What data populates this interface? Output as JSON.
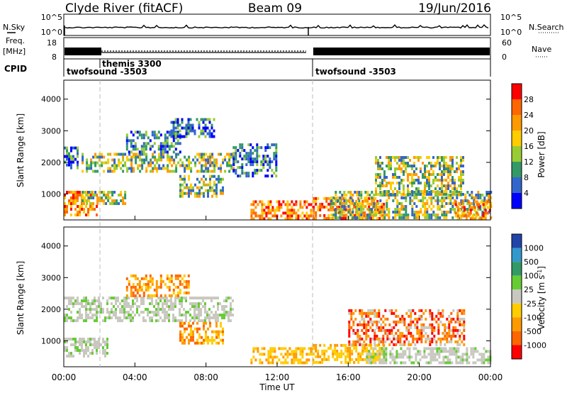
{
  "header": {
    "station": "Clyde River (fitACF)",
    "beam": "Beam 09",
    "date": "19/Jun/2016"
  },
  "noise_panel": {
    "left_label": "N.Sky",
    "left_ticks": [
      "10^5",
      "10^0"
    ],
    "right_label": "N.Search",
    "right_ticks": [
      "10^5",
      "10^0"
    ]
  },
  "freq_panel": {
    "left_label_top": "Freq.",
    "left_label_bottom": "[MHz]",
    "left_ticks": [
      "18",
      "8"
    ],
    "right_label": "Nave",
    "right_ticks": [
      "60",
      "0"
    ]
  },
  "cpid_panel": {
    "label": "CPID",
    "modes": [
      {
        "name": "twofsound -3503",
        "start_hour": 0,
        "end_hour": 2
      },
      {
        "name": "themis 3300",
        "start_hour": 2,
        "end_hour": 14
      },
      {
        "name": "twofsound -3503",
        "start_hour": 14,
        "end_hour": 24
      }
    ]
  },
  "time_axis": {
    "label": "Time UT",
    "ticks": [
      "00:00",
      "04:00",
      "08:00",
      "12:00",
      "16:00",
      "20:00",
      "00:00"
    ]
  },
  "chart_data": [
    {
      "type": "heatmap",
      "quantity": "Power",
      "ylabel": "Slant Range [km]",
      "yticks": [
        "1000",
        "2000",
        "3000",
        "4000"
      ],
      "ylim": [
        180,
        4600
      ],
      "xlim_hours": [
        0,
        24
      ],
      "colorbar": {
        "label": "Power [dB]",
        "ticks": [
          "28",
          "24",
          "20",
          "16",
          "12",
          "8",
          "4"
        ],
        "colors": [
          "#ff0000",
          "#ff6600",
          "#ff9900",
          "#ffcc00",
          "#99cc33",
          "#339966",
          "#3366cc",
          "#0000ff"
        ]
      },
      "echo_regions": [
        {
          "t0": 0.0,
          "t1": 1.8,
          "r0": 350,
          "r1": 1100,
          "level": "high"
        },
        {
          "t0": 0.0,
          "t1": 0.8,
          "r0": 1800,
          "r1": 2500,
          "level": "low"
        },
        {
          "t0": 1.0,
          "t1": 3.5,
          "r0": 700,
          "r1": 1100,
          "level": "mid"
        },
        {
          "t0": 1.0,
          "t1": 9.5,
          "r0": 1700,
          "r1": 2300,
          "level": "mid"
        },
        {
          "t0": 3.5,
          "t1": 6.5,
          "r0": 2300,
          "r1": 3000,
          "level": "low"
        },
        {
          "t0": 6.0,
          "t1": 8.5,
          "r0": 2800,
          "r1": 3400,
          "level": "low"
        },
        {
          "t0": 6.5,
          "t1": 9.0,
          "r0": 900,
          "r1": 1600,
          "level": "mid"
        },
        {
          "t0": 9.5,
          "t1": 12.0,
          "r0": 1600,
          "r1": 2600,
          "level": "low"
        },
        {
          "t0": 10.5,
          "t1": 14.0,
          "r0": 250,
          "r1": 800,
          "level": "high"
        },
        {
          "t0": 14.0,
          "t1": 18.0,
          "r0": 250,
          "r1": 900,
          "level": "high"
        },
        {
          "t0": 15.0,
          "t1": 24.0,
          "r0": 250,
          "r1": 1100,
          "level": "mid"
        },
        {
          "t0": 17.5,
          "t1": 22.5,
          "r0": 1000,
          "r1": 2200,
          "level": "mid"
        },
        {
          "t0": 22.0,
          "t1": 24.0,
          "r0": 250,
          "r1": 800,
          "level": "high"
        }
      ]
    },
    {
      "type": "heatmap",
      "quantity": "Velocity",
      "ylabel": "Slant Range [km]",
      "yticks": [
        "1000",
        "2000",
        "3000",
        "4000"
      ],
      "ylim": [
        180,
        4600
      ],
      "xlim_hours": [
        0,
        24
      ],
      "colorbar": {
        "label": "Velocity [m s-1]",
        "ticks": [
          "1000",
          "500",
          "100",
          "25",
          "-25",
          "-100",
          "-500",
          "-1000"
        ],
        "colors": [
          "#2244aa",
          "#3399cc",
          "#339966",
          "#66cc33",
          "#c8c8c0",
          "#ffcc00",
          "#ff9900",
          "#ff6600",
          "#ff0000"
        ]
      },
      "echo_regions": [
        {
          "t0": 0.0,
          "t1": 9.5,
          "r0": 1600,
          "r1": 2400,
          "level": "ground"
        },
        {
          "t0": 0.0,
          "t1": 2.5,
          "r0": 500,
          "r1": 1100,
          "level": "ground"
        },
        {
          "t0": 3.5,
          "t1": 7.0,
          "r0": 2400,
          "r1": 3100,
          "level": "neg"
        },
        {
          "t0": 6.5,
          "t1": 9.0,
          "r0": 900,
          "r1": 1600,
          "level": "neg"
        },
        {
          "t0": 10.5,
          "t1": 14.0,
          "r0": 300,
          "r1": 800,
          "level": "neg_small"
        },
        {
          "t0": 14.0,
          "t1": 18.0,
          "r0": 300,
          "r1": 900,
          "level": "neg_small"
        },
        {
          "t0": 16.0,
          "t1": 22.5,
          "r0": 900,
          "r1": 2000,
          "level": "neg_big"
        },
        {
          "t0": 17.0,
          "t1": 24.0,
          "r0": 300,
          "r1": 800,
          "level": "ground"
        }
      ]
    }
  ]
}
